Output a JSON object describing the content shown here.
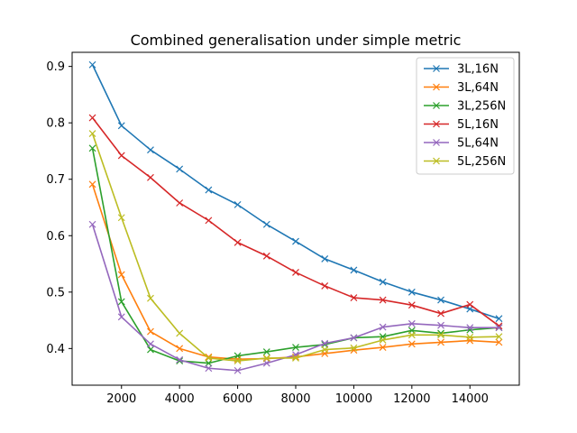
{
  "chart_data": {
    "type": "line",
    "title": "Combined generalisation under simple metric",
    "xlabel": "",
    "ylabel": "",
    "xlim": [
      300,
      15700
    ],
    "ylim": [
      0.335,
      0.925
    ],
    "xticks": [
      2000,
      4000,
      6000,
      8000,
      10000,
      12000,
      14000
    ],
    "yticks": [
      0.4,
      0.5,
      0.6,
      0.7,
      0.8,
      0.9
    ],
    "x": [
      1000,
      2000,
      3000,
      4000,
      5000,
      6000,
      7000,
      8000,
      9000,
      10000,
      11000,
      12000,
      13000,
      14000,
      15000
    ],
    "marker": "x",
    "grid": false,
    "legend_position": "top-right",
    "series": [
      {
        "name": "3L,16N",
        "color": "#1f77b4",
        "values": [
          0.903,
          0.795,
          0.752,
          0.718,
          0.681,
          0.655,
          0.62,
          0.59,
          0.559,
          0.539,
          0.518,
          0.5,
          0.486,
          0.47,
          0.453
        ]
      },
      {
        "name": "3L,64N",
        "color": "#ff7f0e",
        "values": [
          0.691,
          0.531,
          0.43,
          0.4,
          0.385,
          0.381,
          0.382,
          0.385,
          0.391,
          0.397,
          0.402,
          0.408,
          0.411,
          0.414,
          0.411
        ]
      },
      {
        "name": "3L,256N",
        "color": "#2ca02c",
        "values": [
          0.755,
          0.483,
          0.398,
          0.378,
          0.374,
          0.387,
          0.394,
          0.402,
          0.407,
          0.419,
          0.421,
          0.432,
          0.427,
          0.433,
          0.437
        ]
      },
      {
        "name": "5L,16N",
        "color": "#d62728",
        "values": [
          0.809,
          0.742,
          0.703,
          0.658,
          0.627,
          0.588,
          0.564,
          0.535,
          0.511,
          0.49,
          0.486,
          0.477,
          0.462,
          0.478,
          0.44
        ]
      },
      {
        "name": "5L,64N",
        "color": "#9467bd",
        "values": [
          0.62,
          0.456,
          0.408,
          0.38,
          0.365,
          0.361,
          0.374,
          0.389,
          0.409,
          0.419,
          0.438,
          0.444,
          0.441,
          0.437,
          0.437
        ]
      },
      {
        "name": "5L,256N",
        "color": "#bcbd22",
        "values": [
          0.781,
          0.632,
          0.489,
          0.427,
          0.383,
          0.378,
          0.383,
          0.383,
          0.398,
          0.401,
          0.415,
          0.424,
          0.424,
          0.42,
          0.421
        ]
      }
    ]
  }
}
